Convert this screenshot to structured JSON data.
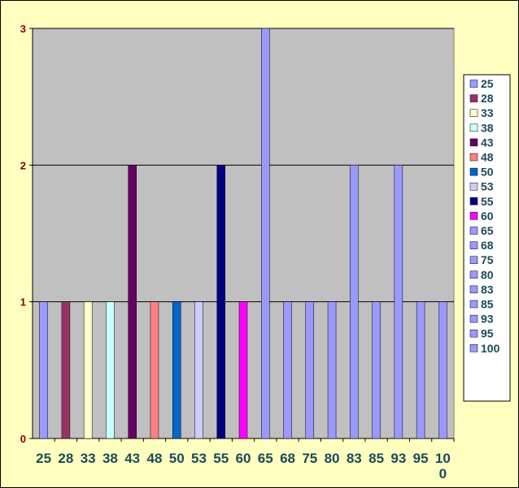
{
  "chart_data": {
    "type": "bar",
    "title": "",
    "xlabel": "",
    "ylabel": "",
    "ylim": [
      0,
      3
    ],
    "y_ticks": [
      "0",
      "1",
      "2",
      "3"
    ],
    "grid": true,
    "legend_position": "right",
    "plot_background": "#c0c0c0",
    "chart_background": "#ffffc0",
    "categories": [
      "25",
      "28",
      "33",
      "38",
      "43",
      "48",
      "50",
      "53",
      "55",
      "60",
      "65",
      "68",
      "75",
      "80",
      "83",
      "85",
      "93",
      "95",
      "100"
    ],
    "values": [
      1,
      1,
      1,
      1,
      2,
      1,
      1,
      1,
      2,
      1,
      3,
      1,
      1,
      1,
      2,
      1,
      2,
      1,
      1
    ],
    "colors": [
      "#9999ff",
      "#993366",
      "#ffffcc",
      "#ccffff",
      "#660066",
      "#ff8080",
      "#0066cc",
      "#ccccff",
      "#000080",
      "#ff00ff",
      "#9999ff",
      "#9999ff",
      "#9999ff",
      "#9999ff",
      "#9999ff",
      "#9999ff",
      "#9999ff",
      "#9999ff",
      "#9999ff"
    ],
    "legend": [
      "25",
      "28",
      "33",
      "38",
      "43",
      "48",
      "50",
      "53",
      "55",
      "60",
      "65",
      "68",
      "75",
      "80",
      "83",
      "85",
      "93",
      "95",
      "100"
    ]
  }
}
